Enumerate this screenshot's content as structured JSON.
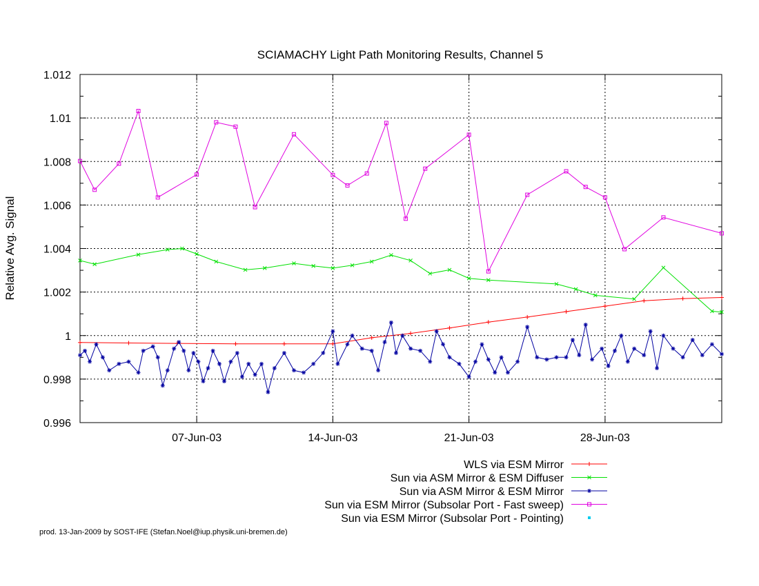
{
  "chart_data": {
    "type": "line",
    "title": "SCIAMACHY Light Path Monitoring Results, Channel 5",
    "xlabel": "",
    "ylabel": "Relative Avg. Signal",
    "xlim": [
      "2003-06-01",
      "2003-07-04"
    ],
    "ylim": [
      0.996,
      1.012
    ],
    "y_ticks": [
      0.996,
      0.998,
      1.0,
      1.002,
      1.004,
      1.006,
      1.008,
      1.01,
      1.012
    ],
    "y_tick_labels": [
      "0.996",
      "0.998",
      "1",
      "1.002",
      "1.004",
      "1.006",
      "1.008",
      "1.01",
      "1.012"
    ],
    "x_ticks": [
      "2003-06-07",
      "2003-06-14",
      "2003-06-21",
      "2003-06-28"
    ],
    "x_tick_labels": [
      "07-Jun-03",
      "14-Jun-03",
      "21-Jun-03",
      "28-Jun-03"
    ],
    "grid": true,
    "legend_position": "below plot, right-aligned",
    "footer": "prod. 13-Jan-2009 by SOST-IFE (Stefan.Noel@iup.physik.uni-bremen.de)",
    "series": [
      {
        "name": "WLS via ESM Mirror",
        "color": "#ff0000",
        "marker": "plus",
        "points": [
          [
            "2003-06-01 00:00",
            0.99968
          ],
          [
            "2003-06-03 12:00",
            0.99966
          ],
          [
            "2003-06-06 00:00",
            0.99964
          ],
          [
            "2003-06-09 00:00",
            0.99962
          ],
          [
            "2003-06-11 12:00",
            0.99962
          ],
          [
            "2003-06-14 00:00",
            0.99962
          ],
          [
            "2003-06-16 00:00",
            0.9999
          ],
          [
            "2003-06-18 00:00",
            1.0001
          ],
          [
            "2003-06-20 00:00",
            1.00035
          ],
          [
            "2003-06-22 00:00",
            1.00062
          ],
          [
            "2003-06-24 00:00",
            1.00085
          ],
          [
            "2003-06-26 00:00",
            1.0011
          ],
          [
            "2003-06-28 00:00",
            1.00135
          ],
          [
            "2003-06-30 00:00",
            1.0016
          ],
          [
            "2003-07-02 00:00",
            1.0017
          ],
          [
            "2003-07-04 00:00",
            1.00175
          ]
        ]
      },
      {
        "name": "Sun via ASM Mirror & ESM Diffuser",
        "color": "#00e000",
        "marker": "cross",
        "points": [
          [
            "2003-06-01 00:00",
            1.00345
          ],
          [
            "2003-06-01 18:00",
            1.00328
          ],
          [
            "2003-06-04 00:00",
            1.00372
          ],
          [
            "2003-06-05 12:00",
            1.00395
          ],
          [
            "2003-06-06 06:00",
            1.004
          ],
          [
            "2003-06-07 00:00",
            1.00375
          ],
          [
            "2003-06-08 00:00",
            1.0034
          ],
          [
            "2003-06-09 12:00",
            1.00302
          ],
          [
            "2003-06-10 12:00",
            1.0031
          ],
          [
            "2003-06-12 00:00",
            1.00332
          ],
          [
            "2003-06-13 00:00",
            1.0032
          ],
          [
            "2003-06-14 00:00",
            1.0031
          ],
          [
            "2003-06-15 00:00",
            1.00323
          ],
          [
            "2003-06-16 00:00",
            1.0034
          ],
          [
            "2003-06-17 00:00",
            1.0037
          ],
          [
            "2003-06-18 00:00",
            1.00345
          ],
          [
            "2003-06-19 00:00",
            1.00285
          ],
          [
            "2003-06-20 00:00",
            1.00302
          ],
          [
            "2003-06-21 00:00",
            1.00263
          ],
          [
            "2003-06-22 00:00",
            1.00255
          ],
          [
            "2003-06-25 12:00",
            1.00237
          ],
          [
            "2003-06-26 12:00",
            1.00213
          ],
          [
            "2003-06-27 12:00",
            1.00185
          ],
          [
            "2003-06-29 12:00",
            1.00168
          ],
          [
            "2003-07-01 00:00",
            1.00312
          ],
          [
            "2003-07-03 12:00",
            1.00112
          ],
          [
            "2003-07-04 00:00",
            1.00108
          ]
        ]
      },
      {
        "name": "Sun via ASM Mirror & ESM Mirror",
        "color": "#0000a0",
        "marker": "star",
        "points": [
          [
            "2003-06-01 00:00",
            0.9991
          ],
          [
            "2003-06-01 06:00",
            0.9993
          ],
          [
            "2003-06-01 12:00",
            0.9988
          ],
          [
            "2003-06-01 20:00",
            0.9996
          ],
          [
            "2003-06-02 04:00",
            0.999
          ],
          [
            "2003-06-02 12:00",
            0.9984
          ],
          [
            "2003-06-03 00:00",
            0.9987
          ],
          [
            "2003-06-03 12:00",
            0.9988
          ],
          [
            "2003-06-04 00:00",
            0.9983
          ],
          [
            "2003-06-04 06:00",
            0.9993
          ],
          [
            "2003-06-04 18:00",
            0.9995
          ],
          [
            "2003-06-05 00:00",
            0.999
          ],
          [
            "2003-06-05 06:00",
            0.9977
          ],
          [
            "2003-06-05 12:00",
            0.9984
          ],
          [
            "2003-06-05 20:00",
            0.9994
          ],
          [
            "2003-06-06 02:00",
            0.9997
          ],
          [
            "2003-06-06 08:00",
            0.9993
          ],
          [
            "2003-06-06 14:00",
            0.9984
          ],
          [
            "2003-06-06 20:00",
            0.9992
          ],
          [
            "2003-06-07 02:00",
            0.9988
          ],
          [
            "2003-06-07 08:00",
            0.9979
          ],
          [
            "2003-06-07 14:00",
            0.9985
          ],
          [
            "2003-06-07 20:00",
            0.9993
          ],
          [
            "2003-06-08 04:00",
            0.9987
          ],
          [
            "2003-06-08 10:00",
            0.9979
          ],
          [
            "2003-06-08 18:00",
            0.9988
          ],
          [
            "2003-06-09 02:00",
            0.9992
          ],
          [
            "2003-06-09 08:00",
            0.9981
          ],
          [
            "2003-06-09 16:00",
            0.9987
          ],
          [
            "2003-06-10 00:00",
            0.9982
          ],
          [
            "2003-06-10 08:00",
            0.9987
          ],
          [
            "2003-06-10 16:00",
            0.9974
          ],
          [
            "2003-06-11 00:00",
            0.9985
          ],
          [
            "2003-06-11 12:00",
            0.9992
          ],
          [
            "2003-06-12 00:00",
            0.9984
          ],
          [
            "2003-06-12 12:00",
            0.9983
          ],
          [
            "2003-06-13 00:00",
            0.9987
          ],
          [
            "2003-06-13 12:00",
            0.9992
          ],
          [
            "2003-06-14 00:00",
            1.0002
          ],
          [
            "2003-06-14 06:00",
            0.9987
          ],
          [
            "2003-06-14 18:00",
            0.9996
          ],
          [
            "2003-06-15 00:00",
            1.0
          ],
          [
            "2003-06-15 12:00",
            0.9994
          ],
          [
            "2003-06-16 00:00",
            0.9993
          ],
          [
            "2003-06-16 08:00",
            0.9984
          ],
          [
            "2003-06-16 16:00",
            0.9997
          ],
          [
            "2003-06-17 00:00",
            1.0006
          ],
          [
            "2003-06-17 06:00",
            0.9992
          ],
          [
            "2003-06-17 14:00",
            1.0
          ],
          [
            "2003-06-18 00:00",
            0.9994
          ],
          [
            "2003-06-18 12:00",
            0.9993
          ],
          [
            "2003-06-19 00:00",
            0.9988
          ],
          [
            "2003-06-19 08:00",
            1.0002
          ],
          [
            "2003-06-19 16:00",
            0.9996
          ],
          [
            "2003-06-20 00:00",
            0.999
          ],
          [
            "2003-06-20 12:00",
            0.9987
          ],
          [
            "2003-06-21 00:00",
            0.9981
          ],
          [
            "2003-06-21 08:00",
            0.9988
          ],
          [
            "2003-06-21 16:00",
            0.9996
          ],
          [
            "2003-06-22 00:00",
            0.9989
          ],
          [
            "2003-06-22 08:00",
            0.9983
          ],
          [
            "2003-06-22 16:00",
            0.999
          ],
          [
            "2003-06-23 00:00",
            0.9983
          ],
          [
            "2003-06-23 12:00",
            0.9988
          ],
          [
            "2003-06-24 00:00",
            1.0004
          ],
          [
            "2003-06-24 12:00",
            0.999
          ],
          [
            "2003-06-25 00:00",
            0.9989
          ],
          [
            "2003-06-25 12:00",
            0.999
          ],
          [
            "2003-06-26 00:00",
            0.999
          ],
          [
            "2003-06-26 08:00",
            0.9998
          ],
          [
            "2003-06-26 16:00",
            0.9991
          ],
          [
            "2003-06-27 00:00",
            1.0005
          ],
          [
            "2003-06-27 08:00",
            0.9989
          ],
          [
            "2003-06-27 20:00",
            0.9994
          ],
          [
            "2003-06-28 04:00",
            0.9986
          ],
          [
            "2003-06-28 12:00",
            0.9993
          ],
          [
            "2003-06-28 20:00",
            1.0
          ],
          [
            "2003-06-29 04:00",
            0.9988
          ],
          [
            "2003-06-29 12:00",
            0.9994
          ],
          [
            "2003-06-30 00:00",
            0.9991
          ],
          [
            "2003-06-30 08:00",
            1.0002
          ],
          [
            "2003-06-30 16:00",
            0.9985
          ],
          [
            "2003-07-01 00:00",
            1.0
          ],
          [
            "2003-07-01 12:00",
            0.9994
          ],
          [
            "2003-07-02 00:00",
            0.999
          ],
          [
            "2003-07-02 12:00",
            0.9998
          ],
          [
            "2003-07-03 00:00",
            0.9991
          ],
          [
            "2003-07-03 12:00",
            0.9996
          ],
          [
            "2003-07-04 00:00",
            0.99915
          ]
        ]
      },
      {
        "name": "Sun via ESM Mirror (Subsolar Port - Fast sweep)",
        "color": "#e000e0",
        "marker": "square",
        "points": [
          [
            "2003-06-01 00:00",
            1.00802
          ],
          [
            "2003-06-01 18:00",
            1.0067
          ],
          [
            "2003-06-03 00:00",
            1.0079
          ],
          [
            "2003-06-04 00:00",
            1.01032
          ],
          [
            "2003-06-05 00:00",
            1.00635
          ],
          [
            "2003-06-07 00:00",
            1.0074
          ],
          [
            "2003-06-08 00:00",
            1.0098
          ],
          [
            "2003-06-09 00:00",
            1.0096
          ],
          [
            "2003-06-10 00:00",
            1.0059
          ],
          [
            "2003-06-12 00:00",
            1.00925
          ],
          [
            "2003-06-14 00:00",
            1.00738
          ],
          [
            "2003-06-14 18:00",
            1.0069
          ],
          [
            "2003-06-15 18:00",
            1.00745
          ],
          [
            "2003-06-16 18:00",
            1.00977
          ],
          [
            "2003-06-17 18:00",
            1.00537
          ],
          [
            "2003-06-18 18:00",
            1.00767
          ],
          [
            "2003-06-21 00:00",
            1.00923
          ],
          [
            "2003-06-22 00:00",
            1.00295
          ],
          [
            "2003-06-24 00:00",
            1.00647
          ],
          [
            "2003-06-26 00:00",
            1.00755
          ],
          [
            "2003-06-27 00:00",
            1.00683
          ],
          [
            "2003-06-28 00:00",
            1.00635
          ],
          [
            "2003-06-29 00:00",
            1.00397
          ],
          [
            "2003-07-01 00:00",
            1.00543
          ],
          [
            "2003-07-04 00:00",
            1.0047
          ]
        ]
      },
      {
        "name": "Sun via ESM Mirror (Subsolar Port - Pointing)",
        "color": "#00ccee",
        "marker": "dot",
        "points": []
      }
    ]
  }
}
